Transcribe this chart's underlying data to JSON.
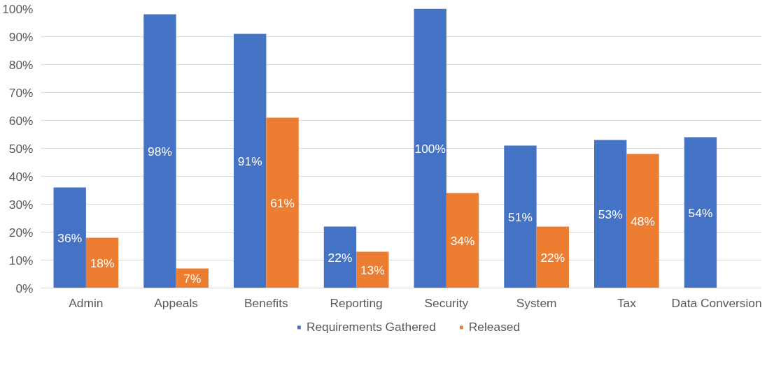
{
  "chart_data": {
    "type": "bar",
    "categories": [
      "Admin",
      "Appeals",
      "Benefits",
      "Reporting",
      "Security",
      "System",
      "Tax",
      "Data Conversion"
    ],
    "series": [
      {
        "name": "Requirements Gathered",
        "color": "#4472c4",
        "values": [
          36,
          98,
          91,
          22,
          100,
          51,
          53,
          54
        ],
        "value_labels": [
          "36%",
          "98%",
          "91%",
          "22%",
          "100%",
          "51%",
          "53%",
          "54%"
        ]
      },
      {
        "name": "Released",
        "color": "#ed7d31",
        "values": [
          18,
          7,
          61,
          13,
          34,
          22,
          48,
          null
        ],
        "value_labels": [
          "18%",
          "7%",
          "61%",
          "13%",
          "34%",
          "22%",
          "48%",
          null
        ]
      }
    ],
    "ylim": [
      0,
      100
    ],
    "yticks": [
      {
        "value": 0,
        "label": "0%"
      },
      {
        "value": 10,
        "label": "10%"
      },
      {
        "value": 20,
        "label": "20%"
      },
      {
        "value": 30,
        "label": "30%"
      },
      {
        "value": 40,
        "label": "40%"
      },
      {
        "value": 50,
        "label": "50%"
      },
      {
        "value": 60,
        "label": "60%"
      },
      {
        "value": 70,
        "label": "70%"
      },
      {
        "value": 80,
        "label": "80%"
      },
      {
        "value": 90,
        "label": "90%"
      },
      {
        "value": 100,
        "label": "100%"
      }
    ],
    "grid": "y",
    "legend": "bottom"
  }
}
